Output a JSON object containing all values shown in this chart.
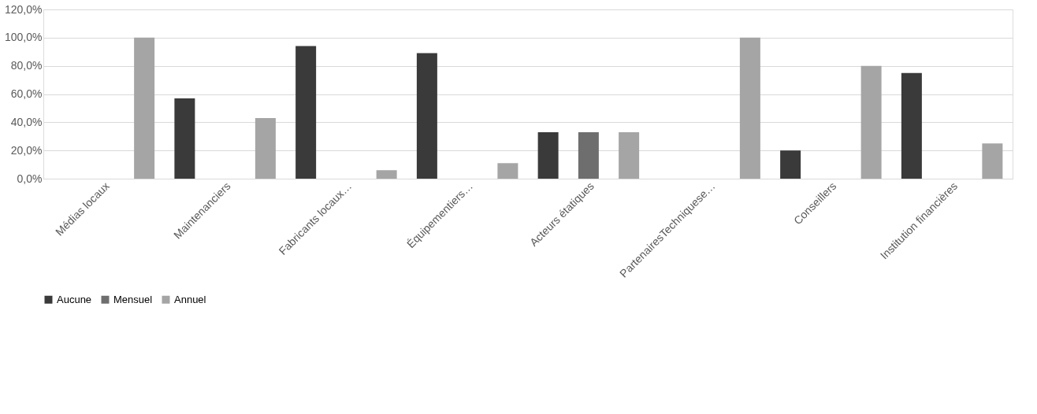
{
  "chart_data": {
    "type": "bar",
    "categories": [
      "Médias locaux",
      "Maintenanciers",
      "Fabricants locaux…",
      "Équipementiers…",
      "Acteurs étatiques",
      "PartenairesTechniquese…",
      "Conseillers",
      "Institution financières"
    ],
    "series": [
      {
        "name": "Aucune",
        "color": "#3a3a3a",
        "values": [
          null,
          57,
          94,
          89,
          33,
          null,
          20,
          75
        ]
      },
      {
        "name": "Mensuel",
        "color": "#6e6e6e",
        "values": [
          null,
          null,
          null,
          null,
          33,
          null,
          null,
          null
        ]
      },
      {
        "name": "Annuel",
        "color": "#a5a5a5",
        "values": [
          100,
          43,
          6,
          11,
          33,
          100,
          80,
          25
        ]
      }
    ],
    "ylim": [
      0,
      120
    ],
    "yticks": [
      {
        "value": 0,
        "label": "0,0%"
      },
      {
        "value": 20,
        "label": "20,0%"
      },
      {
        "value": 40,
        "label": "40,0%"
      },
      {
        "value": 60,
        "label": "60,0%"
      },
      {
        "value": 80,
        "label": "80,0%"
      },
      {
        "value": 100,
        "label": "100,0%"
      },
      {
        "value": 120,
        "label": "120,0%"
      }
    ],
    "grid": "y",
    "legend": "bottom"
  }
}
